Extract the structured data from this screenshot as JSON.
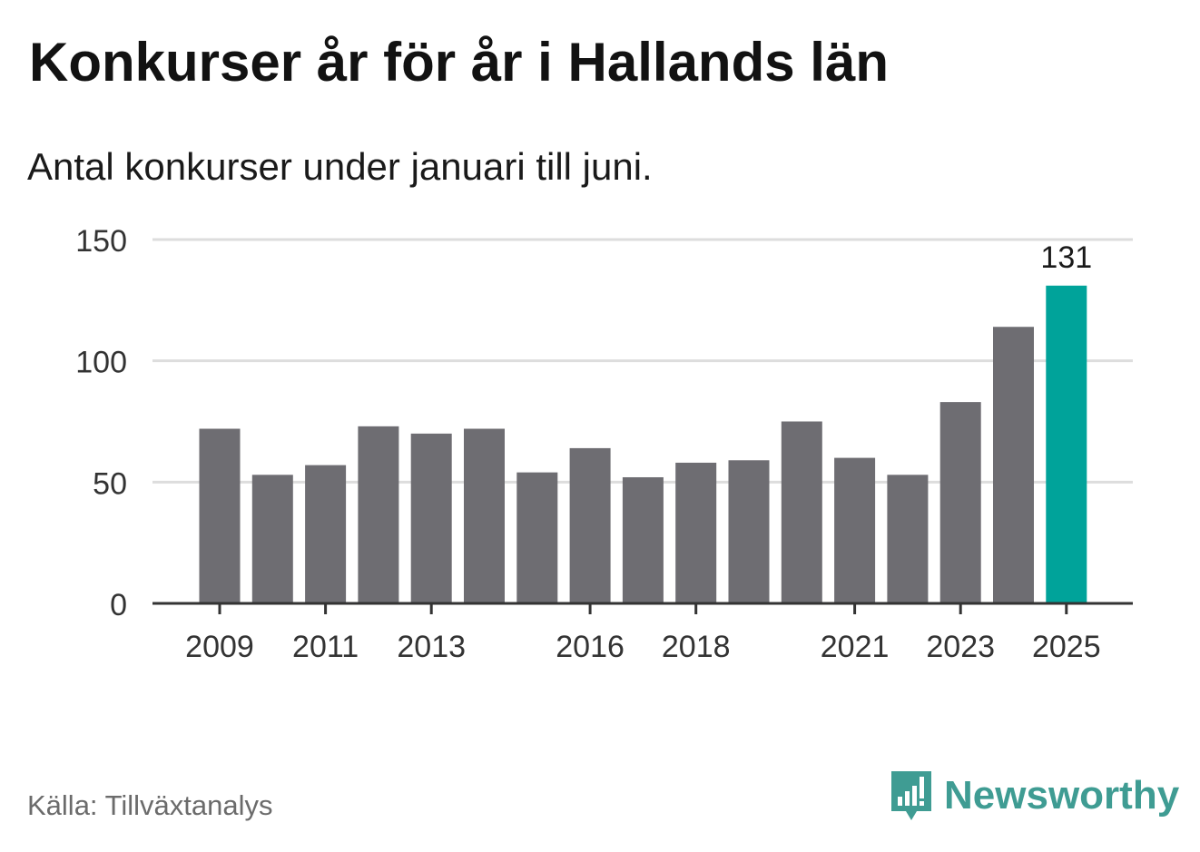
{
  "title": "Konkurser år för år i Hallands län",
  "subtitle": "Antal konkurser under januari till juni.",
  "source": "Källa: Tillväxtanalys",
  "brand": {
    "name": "Newsworthy",
    "icon": "newsworthy-logo-icon",
    "color": "#3f9c93"
  },
  "colors": {
    "bar": "#6e6d72",
    "highlight": "#00a39a",
    "grid": "#dddddd",
    "axis": "#333333"
  },
  "chart_data": {
    "type": "bar",
    "title": "Konkurser år för år i Hallands län",
    "subtitle": "Antal konkurser under januari till juni.",
    "xlabel": "",
    "ylabel": "",
    "ylim": [
      0,
      150
    ],
    "yticks": [
      0,
      50,
      100,
      150
    ],
    "categories": [
      "2009",
      "2010",
      "2011",
      "2012",
      "2013",
      "2014",
      "2015",
      "2016",
      "2017",
      "2018",
      "2019",
      "2020",
      "2021",
      "2022",
      "2023",
      "2024",
      "2025"
    ],
    "xtick_labels": [
      "2009",
      "2011",
      "2013",
      "2016",
      "2018",
      "2021",
      "2023",
      "2025"
    ],
    "values": [
      72,
      53,
      57,
      73,
      70,
      72,
      54,
      64,
      52,
      58,
      59,
      75,
      60,
      53,
      83,
      114,
      131
    ],
    "highlight": {
      "category": "2025",
      "label": "131"
    },
    "grid": true
  }
}
